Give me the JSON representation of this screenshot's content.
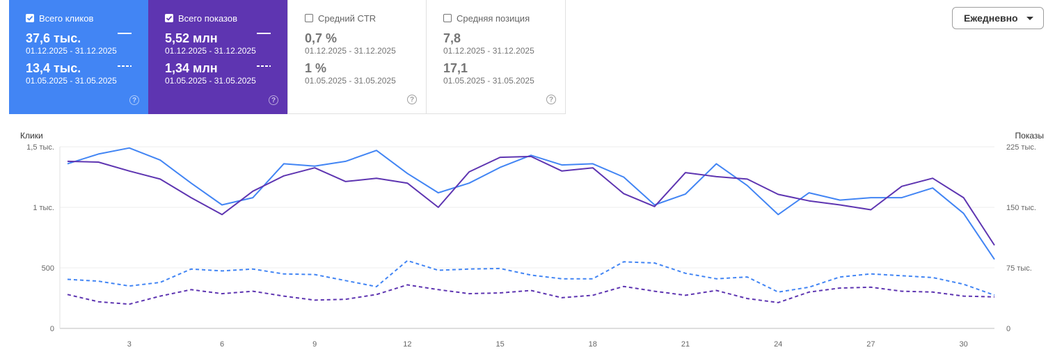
{
  "cards": [
    {
      "key": "clicks",
      "label": "Всего кликов",
      "checked": true,
      "value1": "37,6 тыс.",
      "range1": "01.12.2025 - 31.12.2025",
      "value2": "13,4 тыс.",
      "range2": "01.05.2025 - 31.05.2025",
      "help": "?"
    },
    {
      "key": "impr",
      "label": "Всего показов",
      "checked": true,
      "value1": "5,52 млн",
      "range1": "01.12.2025 - 31.12.2025",
      "value2": "1,34 млн",
      "range2": "01.05.2025 - 31.05.2025",
      "help": "?"
    },
    {
      "key": "ctr",
      "label": "Средний CTR",
      "checked": false,
      "value1": "0,7 %",
      "range1": "01.12.2025 - 31.12.2025",
      "value2": "1 %",
      "range2": "01.05.2025 - 31.05.2025",
      "help": "?"
    },
    {
      "key": "pos",
      "label": "Средняя позиция",
      "checked": false,
      "value1": "7,8",
      "range1": "01.12.2025 - 31.12.2025",
      "value2": "17,1",
      "range2": "01.05.2025 - 31.05.2025",
      "help": "?"
    }
  ],
  "dropdown": {
    "label": "Ежедневно"
  },
  "colors": {
    "clicks": "#4285f4",
    "impressions": "#5e35b1",
    "grid": "#eeeeee"
  },
  "chart_data": {
    "type": "line",
    "left_axis_title": "Клики",
    "right_axis_title": "Показы",
    "left_ticks": [
      "0",
      "500",
      "1 тыс.",
      "1,5 тыс."
    ],
    "left_tick_values": [
      0,
      500,
      1000,
      1500
    ],
    "right_ticks": [
      "0",
      "75 тыс.",
      "150 тыс.",
      "225 тыс."
    ],
    "right_tick_values": [
      0,
      75000,
      150000,
      225000
    ],
    "ylim_left": [
      0,
      1500
    ],
    "ylim_right": [
      0,
      225000
    ],
    "x_ticks": [
      "3",
      "6",
      "9",
      "12",
      "15",
      "18",
      "21",
      "24",
      "27",
      "30"
    ],
    "x": [
      1,
      2,
      3,
      4,
      5,
      6,
      7,
      8,
      9,
      10,
      11,
      12,
      13,
      14,
      15,
      16,
      17,
      18,
      19,
      20,
      21,
      22,
      23,
      24,
      25,
      26,
      27,
      28,
      29,
      30,
      31
    ],
    "grid": true,
    "series": [
      {
        "axis": "left",
        "color": "#4285f4",
        "dashed": false,
        "values": [
          1360,
          1440,
          1490,
          1390,
          1200,
          1020,
          1080,
          1360,
          1340,
          1380,
          1470,
          1280,
          1120,
          1200,
          1330,
          1430,
          1350,
          1360,
          1250,
          1020,
          1110,
          1360,
          1180,
          940,
          1120,
          1060,
          1080,
          1080,
          1160,
          950,
          570
        ]
      },
      {
        "axis": "right",
        "color": "#5e35b1",
        "dashed": false,
        "values": [
          207000,
          206000,
          195000,
          185000,
          162000,
          141000,
          170000,
          189000,
          199000,
          182000,
          186000,
          180000,
          150000,
          194000,
          212000,
          213000,
          195000,
          199000,
          167000,
          151000,
          193000,
          188000,
          185000,
          166000,
          158000,
          153000,
          147000,
          176000,
          186000,
          162000,
          103000
        ]
      },
      {
        "axis": "left",
        "color": "#4285f4",
        "dashed": true,
        "values": [
          405,
          390,
          350,
          380,
          490,
          475,
          490,
          450,
          445,
          395,
          345,
          560,
          480,
          490,
          495,
          440,
          410,
          410,
          550,
          540,
          455,
          410,
          425,
          300,
          340,
          425,
          450,
          435,
          420,
          365,
          275
        ]
      },
      {
        "axis": "right",
        "color": "#5e35b1",
        "dashed": true,
        "values": [
          42000,
          33000,
          30000,
          40000,
          48000,
          43000,
          46000,
          40000,
          35000,
          36000,
          42000,
          54000,
          48000,
          43000,
          44000,
          47000,
          38000,
          41000,
          52000,
          46000,
          41000,
          47000,
          37000,
          32000,
          45000,
          50000,
          51000,
          46000,
          45000,
          40000,
          39000
        ]
      }
    ]
  }
}
